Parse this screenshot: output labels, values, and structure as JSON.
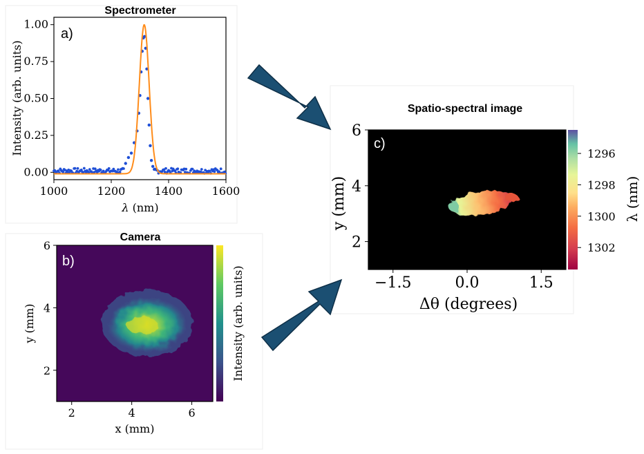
{
  "chart_data": [
    {
      "panel_label": "a)",
      "type": "line",
      "title": "Spectrometer",
      "xlabel_symbol": "λ",
      "xlabel_unit": " (nm)",
      "ylabel": "Intensity (arb. units)",
      "xlim": [
        1000,
        1600
      ],
      "ylim": [
        -0.05,
        1.05
      ],
      "xticks": [
        "1000",
        "1200",
        "1400",
        "1600"
      ],
      "yticks": [
        "0.00",
        "0.25",
        "0.50",
        "0.75",
        "1.00"
      ],
      "series": [
        {
          "kind": "fit",
          "color": "#ff8c1a",
          "peak_center": 1315,
          "fwhm": 40,
          "peak_value": 1.0,
          "baseline": -0.01
        },
        {
          "kind": "measured",
          "color": "#1f4fd6",
          "baseline": 0.01,
          "points": [
            [
              1250,
              0.06
            ],
            [
              1260,
              0.1
            ],
            [
              1270,
              0.13
            ],
            [
              1280,
              0.2
            ],
            [
              1290,
              0.28
            ],
            [
              1296,
              0.4
            ],
            [
              1300,
              0.52
            ],
            [
              1304,
              0.68
            ],
            [
              1308,
              0.82
            ],
            [
              1312,
              0.91
            ],
            [
              1316,
              0.92
            ],
            [
              1320,
              0.84
            ],
            [
              1324,
              0.7
            ],
            [
              1328,
              0.5
            ],
            [
              1332,
              0.32
            ],
            [
              1336,
              0.18
            ],
            [
              1340,
              0.08
            ],
            [
              1345,
              0.04
            ],
            [
              1350,
              0.02
            ]
          ]
        }
      ]
    },
    {
      "panel_label": "b)",
      "type": "heatmap",
      "title": "Camera",
      "xlabel": "x (mm)",
      "ylabel": "y (mm)",
      "colorbar_label": "Intensity (arb. units)",
      "colormap": "viridis",
      "xlim": [
        1.5,
        6.7
      ],
      "ylim": [
        1.0,
        6.0
      ],
      "xticks": [
        "2",
        "4",
        "6"
      ],
      "yticks": [
        "2",
        "4",
        "6"
      ],
      "spot": {
        "cx": 4.2,
        "cy": 3.35,
        "rx": 1.4,
        "ry": 0.85,
        "peak": 0.95
      }
    },
    {
      "panel_label": "c)",
      "type": "heatmap",
      "title": "Spatio-spectral image",
      "xlabel": "Δθ (degrees)",
      "ylabel": "y (mm)",
      "colorbar_label": "λ (nm)",
      "colormap": "Spectral",
      "xlim": [
        -2.0,
        2.0
      ],
      "ylim": [
        1.0,
        6.0
      ],
      "xticks": [
        "−1.5",
        "0.0",
        "1.5"
      ],
      "yticks": [
        "2",
        "4",
        "6"
      ],
      "colorbar_ticks": [
        "1296",
        "1298",
        "1300",
        "1302"
      ],
      "colorbar_range": [
        1294.5,
        1303.4
      ],
      "spot": {
        "cx": 0.2,
        "cy": 3.5,
        "rx": 0.6,
        "ry": 0.35,
        "lambda_left": 1296.5,
        "lambda_right": 1301.8
      }
    }
  ],
  "arrows": {
    "color": "#1b4f72",
    "edge": "#0e2f47"
  }
}
